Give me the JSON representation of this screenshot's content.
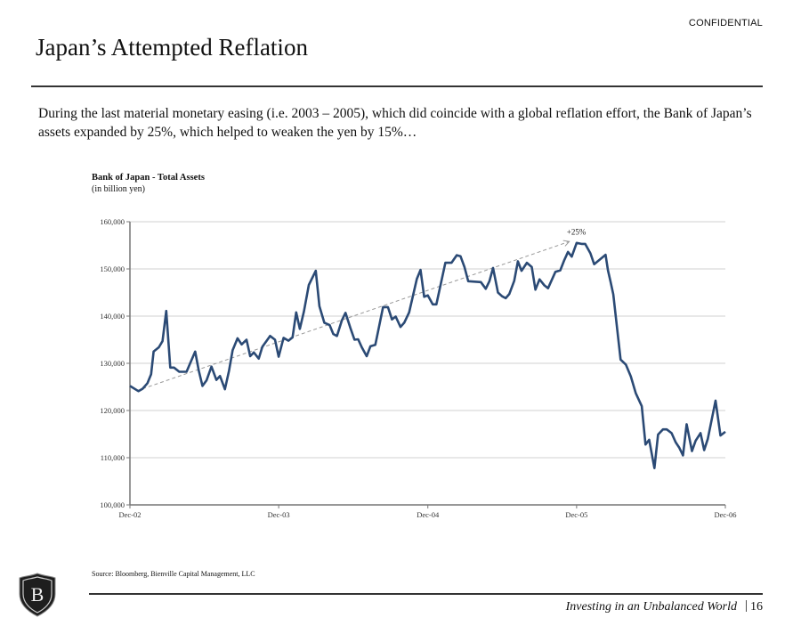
{
  "header": {
    "confidential": "CONFIDENTIAL",
    "title": "Japan’s Attempted Reflation",
    "subtitle": "During the last material monetary easing (i.e. 2003 – 2005), which did coincide with a global reflation effort, the Bank of Japan’s assets expanded by 25%, which helped to weaken the yen by 15%…"
  },
  "footer": {
    "source": "Source: Bloomberg, Bienville Capital Management, LLC",
    "tagline": "Investing in an Unbalanced World",
    "separator": "|",
    "page_number": "16",
    "logo_letter": "B"
  },
  "colors": {
    "line": "#2b4a75",
    "trend": "#999999",
    "grid": "#d0d0d0",
    "axis": "#777777"
  },
  "chart_data": {
    "type": "line",
    "title": "Bank of Japan - Total Assets",
    "subtitle": "(in billion yen)",
    "xlabel": "",
    "ylabel": "",
    "xlim": [
      "2002-12-01",
      "2006-12-01"
    ],
    "ylim": [
      100000,
      160000
    ],
    "x_ticks": [
      {
        "date": "2002-12-01",
        "label": "Dec-02"
      },
      {
        "date": "2003-12-01",
        "label": "Dec-03"
      },
      {
        "date": "2004-12-01",
        "label": "Dec-04"
      },
      {
        "date": "2005-12-01",
        "label": "Dec-05"
      },
      {
        "date": "2006-12-01",
        "label": "Dec-06"
      }
    ],
    "y_ticks": [
      {
        "value": 100000,
        "label": "100,000"
      },
      {
        "value": 110000,
        "label": "110,000"
      },
      {
        "value": 120000,
        "label": "120,000"
      },
      {
        "value": 130000,
        "label": "130,000"
      },
      {
        "value": 140000,
        "label": "140,000"
      },
      {
        "value": 150000,
        "label": "150,000"
      },
      {
        "value": 160000,
        "label": "160,000"
      }
    ],
    "grid": "horizontal",
    "legend": "none",
    "series": [
      {
        "x": [
          "2002-12-01",
          "2002-12-22",
          "2003-01-01",
          "2003-01-13",
          "2003-01-22",
          "2003-01-28",
          "2003-02-10",
          "2003-02-19",
          "2003-02-28",
          "2003-03-10",
          "2003-03-19",
          "2003-04-01",
          "2003-04-19",
          "2003-05-10",
          "2003-05-19",
          "2003-05-28",
          "2003-06-07",
          "2003-06-19",
          "2003-07-01",
          "2003-07-10",
          "2003-07-22",
          "2003-08-01",
          "2003-08-10",
          "2003-08-22",
          "2003-09-01",
          "2003-09-13",
          "2003-09-22",
          "2003-10-01",
          "2003-10-13",
          "2003-10-22",
          "2003-11-10",
          "2003-11-22",
          "2003-12-01",
          "2003-12-13",
          "2003-12-25",
          "2004-01-04",
          "2004-01-13",
          "2004-01-22",
          "2004-02-01",
          "2004-02-13",
          "2004-03-01",
          "2004-03-10",
          "2004-03-22",
          "2004-04-04",
          "2004-04-13",
          "2004-04-22",
          "2004-05-04",
          "2004-05-13",
          "2004-05-25",
          "2004-06-04",
          "2004-06-13",
          "2004-06-22",
          "2004-07-04",
          "2004-07-13",
          "2004-07-25",
          "2004-08-13",
          "2004-08-25",
          "2004-09-04",
          "2004-09-13",
          "2004-09-25",
          "2004-10-04",
          "2004-10-16",
          "2004-11-04",
          "2004-11-13",
          "2004-11-22",
          "2004-12-01",
          "2004-12-13",
          "2004-12-22",
          "2005-01-13",
          "2005-01-28",
          "2005-02-10",
          "2005-02-19",
          "2005-03-01",
          "2005-03-10",
          "2005-04-10",
          "2005-04-22",
          "2005-05-01",
          "2005-05-10",
          "2005-05-22",
          "2005-06-01",
          "2005-06-10",
          "2005-06-19",
          "2005-07-01",
          "2005-07-10",
          "2005-07-19",
          "2005-08-01",
          "2005-08-13",
          "2005-08-22",
          "2005-09-01",
          "2005-09-13",
          "2005-09-22",
          "2005-10-10",
          "2005-10-22",
          "2005-11-01",
          "2005-11-10",
          "2005-11-19",
          "2005-12-01",
          "2005-12-13",
          "2005-12-22",
          "2006-01-04",
          "2006-01-13",
          "2006-02-10",
          "2006-02-16",
          "2006-02-22",
          "2006-03-01",
          "2006-03-19",
          "2006-04-01",
          "2006-04-13",
          "2006-04-25",
          "2006-05-10",
          "2006-05-19",
          "2006-05-28",
          "2006-06-10",
          "2006-06-19",
          "2006-07-01",
          "2006-07-10",
          "2006-07-22",
          "2006-08-01",
          "2006-08-10",
          "2006-08-19",
          "2006-08-28",
          "2006-09-10",
          "2006-09-19",
          "2006-10-01",
          "2006-10-10",
          "2006-10-19",
          "2006-11-07",
          "2006-11-19",
          "2006-12-01"
        ],
        "values": [
          125200,
          124100,
          124600,
          125800,
          127700,
          132500,
          133400,
          134700,
          141100,
          129100,
          129100,
          128200,
          128200,
          132500,
          128400,
          125200,
          126400,
          129300,
          126500,
          127300,
          124500,
          128400,
          132800,
          135300,
          134000,
          135000,
          131500,
          132300,
          131000,
          133500,
          135800,
          135000,
          131400,
          135400,
          134800,
          135500,
          140800,
          137300,
          141000,
          146600,
          149600,
          142100,
          138600,
          138100,
          136200,
          135800,
          139100,
          140700,
          137500,
          135000,
          135100,
          133400,
          131500,
          133600,
          133900,
          141900,
          141900,
          139300,
          139900,
          137700,
          138600,
          140800,
          147900,
          149800,
          144100,
          144400,
          142500,
          142500,
          151300,
          151300,
          152900,
          152700,
          150400,
          147400,
          147200,
          145800,
          147400,
          150200,
          145000,
          144200,
          143800,
          144700,
          147500,
          151600,
          149600,
          151300,
          150400,
          145600,
          147800,
          146500,
          145900,
          149400,
          149700,
          151900,
          153600,
          152600,
          155500,
          155300,
          155300,
          153300,
          151000,
          153000,
          149700,
          147400,
          144600,
          130800,
          129700,
          127200,
          123700,
          120900,
          112800,
          113800,
          107800,
          114900,
          116000,
          116000,
          115200,
          113300,
          112100,
          110500,
          117100,
          111400,
          113600,
          115200,
          111600,
          114000,
          122100,
          114700,
          115500
        ]
      }
    ],
    "annotations": [
      {
        "type": "dashed-arrow",
        "label": "+25%",
        "from": {
          "x": "2003-01-01",
          "y": 124600
        },
        "to": {
          "x": "2005-11-13",
          "y": 155800
        }
      }
    ]
  }
}
